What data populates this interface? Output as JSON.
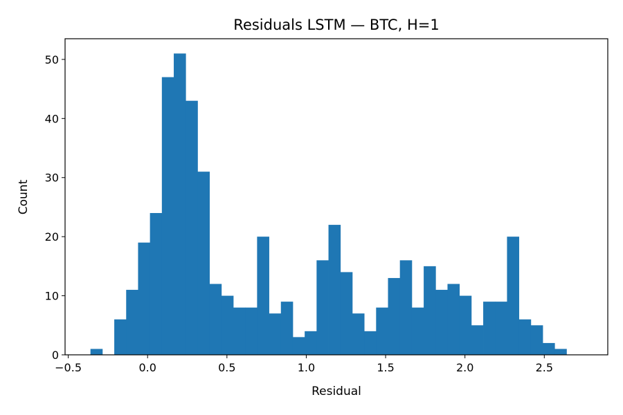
{
  "chart_data": {
    "type": "bar",
    "title": "Residuals LSTM — BTC, H=1",
    "xlabel": "Residual",
    "ylabel": "Count",
    "bar_color": "#1f77b4",
    "xlim": [
      -0.52,
      2.9
    ],
    "ylim": [
      0,
      53.5
    ],
    "xticks": [
      -0.5,
      0.0,
      0.5,
      1.0,
      1.5,
      2.0,
      2.5
    ],
    "xtick_labels": [
      "−0.5",
      "0.0",
      "0.5",
      "1.0",
      "1.5",
      "2.0",
      "2.5"
    ],
    "yticks": [
      0,
      10,
      20,
      30,
      40,
      50
    ],
    "ytick_labels": [
      "0",
      "10",
      "20",
      "30",
      "40",
      "50"
    ],
    "grid": false,
    "legend": "none",
    "bins": [
      {
        "x0": -0.36,
        "x1": -0.285,
        "count": 1
      },
      {
        "x0": -0.21,
        "x1": -0.135,
        "count": 6
      },
      {
        "x0": -0.135,
        "x1": -0.06,
        "count": 11
      },
      {
        "x0": -0.06,
        "x1": 0.015,
        "count": 19
      },
      {
        "x0": 0.015,
        "x1": 0.09,
        "count": 24
      },
      {
        "x0": 0.09,
        "x1": 0.165,
        "count": 47
      },
      {
        "x0": 0.165,
        "x1": 0.24,
        "count": 51
      },
      {
        "x0": 0.24,
        "x1": 0.315,
        "count": 43
      },
      {
        "x0": 0.315,
        "x1": 0.39,
        "count": 31
      },
      {
        "x0": 0.39,
        "x1": 0.465,
        "count": 12
      },
      {
        "x0": 0.465,
        "x1": 0.54,
        "count": 10
      },
      {
        "x0": 0.54,
        "x1": 0.615,
        "count": 8
      },
      {
        "x0": 0.615,
        "x1": 0.69,
        "count": 8
      },
      {
        "x0": 0.69,
        "x1": 0.765,
        "count": 20
      },
      {
        "x0": 0.765,
        "x1": 0.84,
        "count": 7
      },
      {
        "x0": 0.84,
        "x1": 0.915,
        "count": 9
      },
      {
        "x0": 0.915,
        "x1": 0.99,
        "count": 3
      },
      {
        "x0": 0.99,
        "x1": 1.065,
        "count": 4
      },
      {
        "x0": 1.065,
        "x1": 1.14,
        "count": 16
      },
      {
        "x0": 1.14,
        "x1": 1.215,
        "count": 22
      },
      {
        "x0": 1.215,
        "x1": 1.29,
        "count": 14
      },
      {
        "x0": 1.29,
        "x1": 1.365,
        "count": 7
      },
      {
        "x0": 1.365,
        "x1": 1.44,
        "count": 4
      },
      {
        "x0": 1.44,
        "x1": 1.515,
        "count": 8
      },
      {
        "x0": 1.515,
        "x1": 1.59,
        "count": 13
      },
      {
        "x0": 1.59,
        "x1": 1.665,
        "count": 16
      },
      {
        "x0": 1.665,
        "x1": 1.74,
        "count": 8
      },
      {
        "x0": 1.74,
        "x1": 1.815,
        "count": 15
      },
      {
        "x0": 1.815,
        "x1": 1.89,
        "count": 11
      },
      {
        "x0": 1.89,
        "x1": 1.965,
        "count": 12
      },
      {
        "x0": 1.965,
        "x1": 2.04,
        "count": 10
      },
      {
        "x0": 2.04,
        "x1": 2.115,
        "count": 5
      },
      {
        "x0": 2.115,
        "x1": 2.19,
        "count": 9
      },
      {
        "x0": 2.19,
        "x1": 2.265,
        "count": 9
      },
      {
        "x0": 2.265,
        "x1": 2.34,
        "count": 20
      },
      {
        "x0": 2.34,
        "x1": 2.415,
        "count": 6
      },
      {
        "x0": 2.415,
        "x1": 2.49,
        "count": 5
      },
      {
        "x0": 2.49,
        "x1": 2.565,
        "count": 2
      },
      {
        "x0": 2.565,
        "x1": 2.64,
        "count": 1
      }
    ]
  }
}
